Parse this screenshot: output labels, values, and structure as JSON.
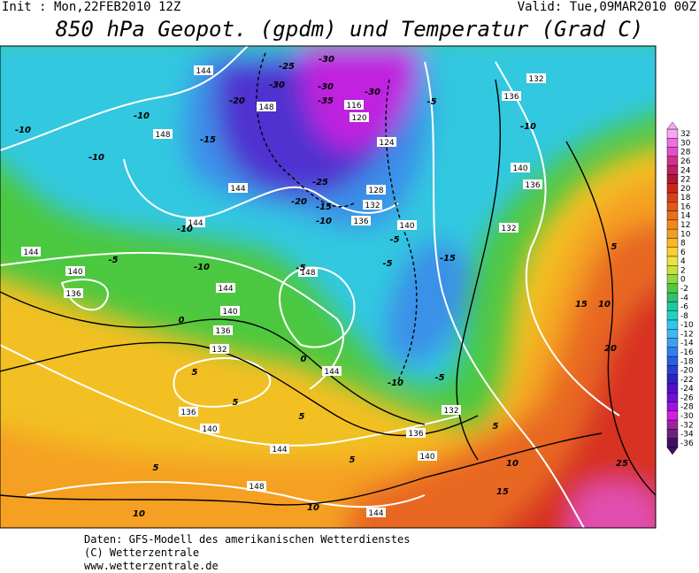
{
  "header": {
    "init": "Init : Mon,22FEB2010 12Z",
    "valid": "Valid: Tue,09MAR2010 00Z",
    "title": "850 hPa Geopot. (gpdm) und Temperatur (Grad C)"
  },
  "colorbar": {
    "labels": [
      32,
      30,
      28,
      26,
      24,
      22,
      20,
      18,
      16,
      14,
      12,
      10,
      8,
      6,
      4,
      2,
      0,
      -2,
      -4,
      -6,
      -8,
      -10,
      -12,
      -14,
      -16,
      -18,
      -20,
      -22,
      -24,
      -26,
      -28,
      -30,
      -32,
      -34,
      -36
    ],
    "colors": [
      "#f7a8f0",
      "#f070e0",
      "#e050c8",
      "#d03090",
      "#c02060",
      "#b01830",
      "#c82818",
      "#d84018",
      "#e05818",
      "#e87018",
      "#f08820",
      "#f0a020",
      "#f8b828",
      "#f8d030",
      "#f0e040",
      "#c8e040",
      "#90d840",
      "#50c840",
      "#30c070",
      "#20c8a0",
      "#20d0c8",
      "#30c8e8",
      "#40b8f0",
      "#40a0f0",
      "#3080e8",
      "#2860e0",
      "#2840d0",
      "#3020c0",
      "#5010c8",
      "#7010d0",
      "#a010e0",
      "#d020e0",
      "#a020a0",
      "#702080",
      "#401060"
    ]
  },
  "map": {
    "height_labels": [
      "144",
      "148",
      "148",
      "144",
      "144",
      "144",
      "140",
      "136",
      "144",
      "148",
      "140",
      "136",
      "132",
      "136",
      "140",
      "144",
      "148",
      "144",
      "140",
      "136",
      "132",
      "144",
      "140",
      "136",
      "132",
      "128",
      "124",
      "120",
      "116",
      "132",
      "136",
      "140",
      "136",
      "132"
    ],
    "temperature_labels": [
      "-25",
      "-30",
      "-30",
      "-20",
      "-30",
      "-35",
      "-30",
      "-5",
      "-10",
      "-10",
      "-15",
      "-10",
      "-25",
      "-20",
      "-15",
      "-10",
      "-10",
      "-5",
      "-5",
      "-10",
      "-5",
      "-5",
      "-15",
      "-10",
      "0",
      "0",
      "-10",
      "-5",
      "5",
      "5",
      "5",
      "5",
      "5",
      "5",
      "10",
      "10",
      "10",
      "15",
      "15",
      "10",
      "20",
      "25",
      "5"
    ]
  },
  "footer": {
    "line1": "Daten: GFS-Modell des amerikanischen Wetterdienstes",
    "line2": "(C) Wetterzentrale",
    "line3": "www.wetterzentrale.de"
  }
}
